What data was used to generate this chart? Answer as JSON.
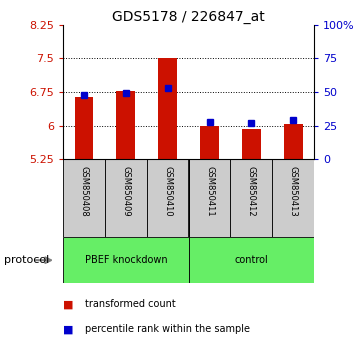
{
  "title": "GDS5178 / 226847_at",
  "samples": [
    "GSM850408",
    "GSM850409",
    "GSM850410",
    "GSM850411",
    "GSM850412",
    "GSM850413"
  ],
  "red_values": [
    6.65,
    6.78,
    7.52,
    6.0,
    5.93,
    6.04
  ],
  "blue_values": [
    6.68,
    6.72,
    6.85,
    6.09,
    6.06,
    6.13
  ],
  "ylim": [
    5.25,
    8.25
  ],
  "yticks": [
    5.25,
    6.0,
    6.75,
    7.5,
    8.25
  ],
  "ytick_labels": [
    "5.25",
    "6",
    "6.75",
    "7.5",
    "8.25"
  ],
  "right_yticks_pct": [
    0,
    25,
    50,
    75,
    100
  ],
  "right_ytick_vals": [
    5.25,
    6.0,
    6.75,
    7.5,
    8.25
  ],
  "right_ytick_labels": [
    "0",
    "25",
    "50",
    "75",
    "100%"
  ],
  "bar_width": 0.45,
  "bar_color": "#cc1100",
  "marker_color": "#0000cc",
  "background_color": "#ffffff",
  "label_bg": "#cccccc",
  "green_color": "#66ee66",
  "title_fontsize": 10,
  "groups": [
    {
      "label": "PBEF knockdown",
      "start": 0,
      "end": 3
    },
    {
      "label": "control",
      "start": 3,
      "end": 6
    }
  ]
}
